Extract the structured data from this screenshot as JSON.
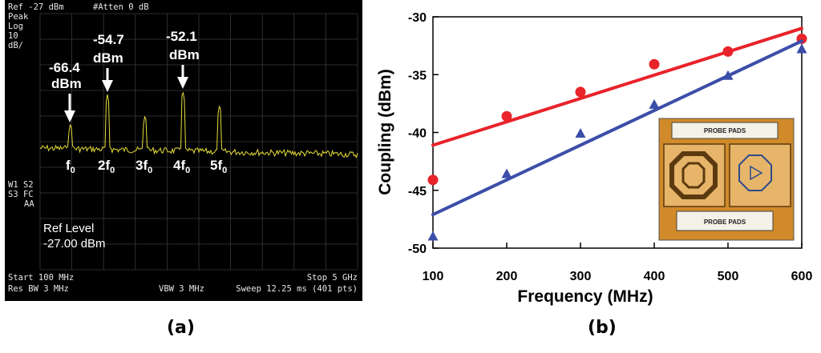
{
  "panel_a": {
    "caption": "(a)",
    "header_ref": "Ref -27 dBm",
    "header_atten": "#Atten 0 dB",
    "left_labels": [
      "Peak",
      "Log",
      "10",
      "dB/"
    ],
    "side_labels": [
      "W1 S2",
      "S3 FC",
      "AA"
    ],
    "ref_level_label": "Ref Level",
    "ref_level_value": "-27.00 dBm",
    "footer_start": "Start 100 MHz",
    "footer_stop": "Stop 5 GHz",
    "footer_res_bw": "Res BW 3 MHz",
    "footer_vbw": "VBW 3 MHz",
    "footer_sweep": "Sweep 12.25 ms (401 pts)",
    "annotations": [
      {
        "value": "-66.4",
        "unit": "dBm"
      },
      {
        "value": "-54.7",
        "unit": "dBm"
      },
      {
        "value": "-52.1",
        "unit": "dBm"
      }
    ],
    "harmonics": [
      {
        "prefix": "f",
        "sub": "0"
      },
      {
        "prefix": "2f",
        "sub": "0"
      },
      {
        "prefix": "3f",
        "sub": "0"
      },
      {
        "prefix": "4f",
        "sub": "0"
      },
      {
        "prefix": "5f",
        "sub": "0"
      }
    ]
  },
  "panel_b": {
    "caption": "(b)",
    "inset_label_top": "PROBE PADS",
    "inset_label_bottom": "PROBE PADS"
  },
  "chart_data": [
    {
      "type": "line",
      "title": "",
      "xlabel": "Frequency (MHz)",
      "ylabel": "Coupling (dBm)",
      "x": [
        100,
        200,
        300,
        400,
        500,
        600
      ],
      "xlim": [
        100,
        600
      ],
      "ylim": [
        -50,
        -30
      ],
      "xticks": [
        "100",
        "200",
        "300",
        "400",
        "500",
        "600"
      ],
      "yticks": [
        "-30",
        "-35",
        "-40",
        "-45",
        "-50"
      ],
      "grid": false,
      "series": [
        {
          "marker": "circle",
          "color": "#e8232a",
          "values": [
            -44.1,
            -38.6,
            -36.5,
            -34.1,
            -33.0,
            -31.9
          ],
          "fit": [
            -41.1,
            -31.0
          ]
        },
        {
          "marker": "triangle",
          "color": "#3b4ea8",
          "values": [
            -49.0,
            -43.6,
            -40.1,
            -37.6,
            -35.1,
            -32.8
          ],
          "fit": [
            -47.1,
            -32.1
          ]
        }
      ]
    }
  ],
  "colors": {
    "spectrum_trace": "#e6dd3a",
    "scope_bg": "#000000"
  }
}
